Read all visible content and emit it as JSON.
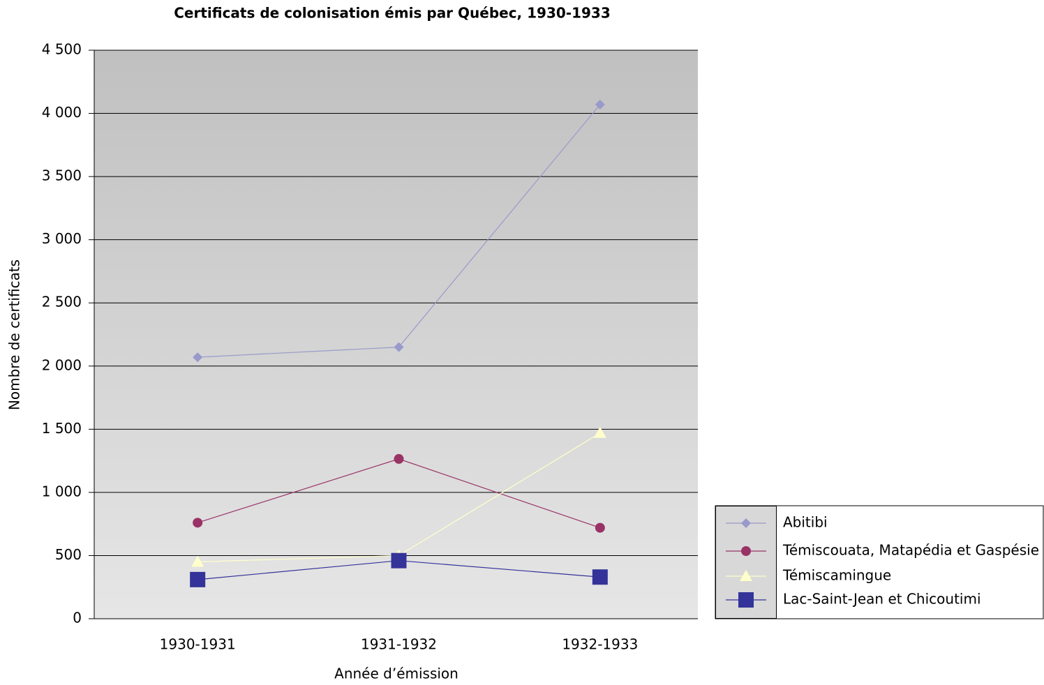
{
  "chart_data": {
    "type": "line",
    "title": "Certificats de colonisation émis par Québec, 1930-1933",
    "x_label": "Année d’émission",
    "y_label": "Nombre de certificats",
    "categories": [
      "1930-1931",
      "1931-1932",
      "1932-1933"
    ],
    "series": [
      {
        "name": "Abitibi",
        "color": "#9999cc",
        "marker": "diamond",
        "values": [
          2070,
          2150,
          4070
        ]
      },
      {
        "name": "Témiscouata, Matapédia et Gaspésie",
        "color": "#993366",
        "marker": "circle",
        "values": [
          760,
          1265,
          720
        ]
      },
      {
        "name": "Témiscamingue",
        "color": "#ffffcc",
        "marker": "triangle",
        "values": [
          450,
          500,
          1470
        ]
      },
      {
        "name": "Lac-Saint-Jean et Chicoutimi",
        "color": "#333399",
        "marker": "square",
        "values": [
          310,
          460,
          330
        ]
      }
    ],
    "ylim": [
      0,
      4500
    ],
    "yticks": [
      0,
      {
        "value": 500,
        "label": "500"
      },
      {
        "value": 1000,
        "label": "1 000"
      },
      {
        "value": 1500,
        "label": "1 500"
      },
      {
        "value": 2000,
        "label": "2 000"
      },
      {
        "value": 2500,
        "label": "2 500"
      },
      {
        "value": 3000,
        "label": "3 000"
      },
      {
        "value": 3500,
        "label": "3 500"
      },
      {
        "value": 4000,
        "label": "4 000"
      },
      {
        "value": 4500,
        "label": "4 500"
      }
    ],
    "grid": true,
    "legend": "lower right"
  }
}
